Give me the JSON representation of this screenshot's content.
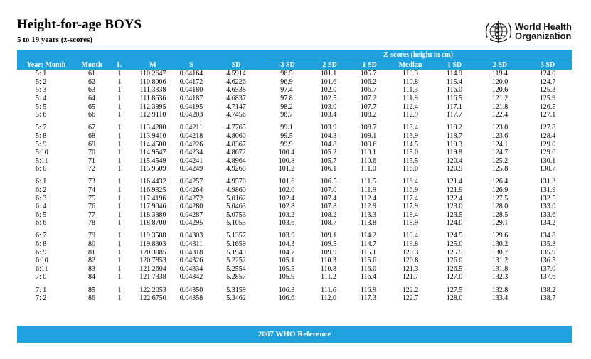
{
  "title": "Height-for-age BOYS",
  "subtitle": "5 to 19 years (z-scores)",
  "logo": {
    "line1": "World Health",
    "line2": "Organization"
  },
  "zscores_caption": "Z-scores (height in cm)",
  "columns": [
    "Year: Month",
    "Month",
    "L",
    "M",
    "S",
    "SD",
    "-3 SD",
    "-2 SD",
    "-1 SD",
    "Median",
    "1 SD",
    "2 SD",
    "3 SD"
  ],
  "groups": [
    [
      [
        "5: 1",
        "61",
        "1",
        "110.2647",
        "0.04164",
        "4.5914",
        "96.5",
        "101.1",
        "105.7",
        "110.3",
        "114.9",
        "119.4",
        "124.0"
      ],
      [
        "5: 2",
        "62",
        "1",
        "110.8006",
        "0.04172",
        "4.6226",
        "96.9",
        "101.6",
        "106.2",
        "110.8",
        "115.4",
        "120.0",
        "124.7"
      ],
      [
        "5: 3",
        "63",
        "1",
        "111.3338",
        "0.04180",
        "4.6538",
        "97.4",
        "102.0",
        "106.7",
        "111.3",
        "116.0",
        "120.6",
        "125.3"
      ],
      [
        "5: 4",
        "64",
        "1",
        "111.8636",
        "0.04187",
        "4.6837",
        "97.8",
        "102.5",
        "107.2",
        "111.9",
        "116.5",
        "121.2",
        "125.9"
      ],
      [
        "5: 5",
        "65",
        "1",
        "112.3895",
        "0.04195",
        "4.7147",
        "98.2",
        "103.0",
        "107.7",
        "112.4",
        "117.1",
        "121.8",
        "126.5"
      ],
      [
        "5: 6",
        "66",
        "1",
        "112.9110",
        "0.04203",
        "4.7456",
        "98.7",
        "103.4",
        "108.2",
        "112.9",
        "117.7",
        "122.4",
        "127.1"
      ]
    ],
    [
      [
        "5: 7",
        "67",
        "1",
        "113.4280",
        "0.04211",
        "4.7765",
        "99.1",
        "103.9",
        "108.7",
        "113.4",
        "118.2",
        "123.0",
        "127.8"
      ],
      [
        "5: 8",
        "68",
        "1",
        "113.9410",
        "0.04218",
        "4.8060",
        "99.5",
        "104.3",
        "109.1",
        "113.9",
        "118.7",
        "123.6",
        "128.4"
      ],
      [
        "5: 9",
        "69",
        "1",
        "114.4500",
        "0.04226",
        "4.8367",
        "99.9",
        "104.8",
        "109.6",
        "114.5",
        "119.3",
        "124.1",
        "129.0"
      ],
      [
        "5:10",
        "70",
        "1",
        "114.9547",
        "0.04234",
        "4.8672",
        "100.4",
        "105.2",
        "110.1",
        "115.0",
        "119.8",
        "124.7",
        "129.6"
      ],
      [
        "5:11",
        "71",
        "1",
        "115.4549",
        "0.04241",
        "4.8964",
        "100.8",
        "105.7",
        "110.6",
        "115.5",
        "120.4",
        "125.2",
        "130.1"
      ],
      [
        "6: 0",
        "72",
        "1",
        "115.9509",
        "0.04249",
        "4.9268",
        "101.2",
        "106.1",
        "111.0",
        "116.0",
        "120.9",
        "125.8",
        "130.7"
      ]
    ],
    [
      [
        "6: 1",
        "73",
        "1",
        "116.4432",
        "0.04257",
        "4.9570",
        "101.6",
        "106.5",
        "111.5",
        "116.4",
        "121.4",
        "126.4",
        "131.3"
      ],
      [
        "6: 2",
        "74",
        "1",
        "116.9325",
        "0.04264",
        "4.9860",
        "102.0",
        "107.0",
        "111.9",
        "116.9",
        "121.9",
        "126.9",
        "131.9"
      ],
      [
        "6: 3",
        "75",
        "1",
        "117.4196",
        "0.04272",
        "5.0162",
        "102.4",
        "107.4",
        "112.4",
        "117.4",
        "122.4",
        "127.5",
        "132.5"
      ],
      [
        "6: 4",
        "76",
        "1",
        "117.9046",
        "0.04280",
        "5.0463",
        "102.8",
        "107.8",
        "112.9",
        "117.9",
        "123.0",
        "128.0",
        "133.0"
      ],
      [
        "6: 5",
        "77",
        "1",
        "118.3880",
        "0.04287",
        "5.0753",
        "103.2",
        "108.2",
        "113.3",
        "118.4",
        "123.5",
        "128.5",
        "133.6"
      ],
      [
        "6: 6",
        "78",
        "1",
        "118.8700",
        "0.04295",
        "5.1055",
        "103.6",
        "108.7",
        "113.8",
        "118.9",
        "124.0",
        "129.1",
        "134.2"
      ]
    ],
    [
      [
        "6: 7",
        "79",
        "1",
        "119.3508",
        "0.04303",
        "5.1357",
        "103.9",
        "109.1",
        "114.2",
        "119.4",
        "124.5",
        "129.6",
        "134.8"
      ],
      [
        "6: 8",
        "80",
        "1",
        "119.8303",
        "0.04311",
        "5.1659",
        "104.3",
        "109.5",
        "114.7",
        "119.8",
        "125.0",
        "130.2",
        "135.3"
      ],
      [
        "6: 9",
        "81",
        "1",
        "120.3085",
        "0.04318",
        "5.1949",
        "104.7",
        "109.9",
        "115.1",
        "120.3",
        "125.5",
        "130.7",
        "135.9"
      ],
      [
        "6:10",
        "82",
        "1",
        "120.7853",
        "0.04326",
        "5.2252",
        "105.1",
        "110.3",
        "115.6",
        "120.8",
        "126.0",
        "131.2",
        "136.5"
      ],
      [
        "6:11",
        "83",
        "1",
        "121.2604",
        "0.04334",
        "5.2554",
        "105.5",
        "110.8",
        "116.0",
        "121.3",
        "126.5",
        "131.8",
        "137.0"
      ],
      [
        "7: 0",
        "84",
        "1",
        "121.7338",
        "0.04342",
        "5.2857",
        "105.9",
        "111.2",
        "116.4",
        "121.7",
        "127.0",
        "132.3",
        "137.6"
      ]
    ],
    [
      [
        "7: 1",
        "85",
        "1",
        "122.2053",
        "0.04350",
        "5.3159",
        "106.3",
        "111.6",
        "116.9",
        "122.2",
        "127.5",
        "132.8",
        "138.2"
      ],
      [
        "7: 2",
        "86",
        "1",
        "122.6750",
        "0.04358",
        "5.3462",
        "106.6",
        "112.0",
        "117.3",
        "122.7",
        "128.0",
        "133.4",
        "138.7"
      ]
    ]
  ],
  "footer": "2007 WHO Reference",
  "colors": {
    "header_blue": "#1ea1dd"
  },
  "icons": {
    "logo": "who-emblem-icon"
  }
}
